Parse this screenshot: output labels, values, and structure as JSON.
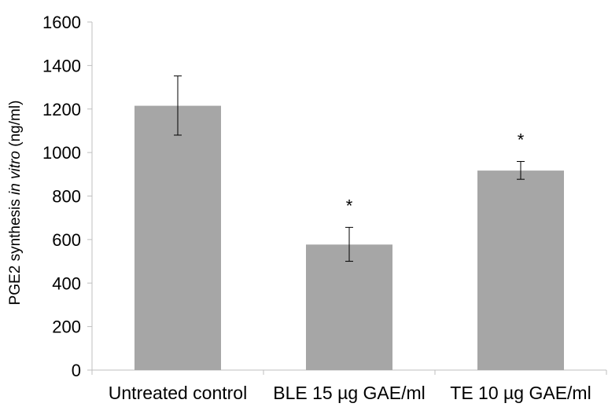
{
  "chart_data": {
    "type": "bar",
    "categories": [
      "Untreated control",
      "BLE 15 µg GAE/ml",
      "TE 10 µg GAE/ml"
    ],
    "values": [
      1215,
      577,
      917
    ],
    "error_low": [
      1080,
      500,
      877
    ],
    "error_high": [
      1352,
      656,
      959
    ],
    "significance": [
      "",
      "*",
      "*"
    ],
    "ylabel": "PGE2 synthesis in vitro (ng/ml)",
    "ylabel_parts": {
      "pre": "PGE2 synthesis ",
      "italic": "in vitro",
      "post": " (ng/ml)"
    },
    "ylim": [
      0,
      1600
    ],
    "yticks": [
      0,
      200,
      400,
      600,
      800,
      1000,
      1200,
      1400,
      1600
    ],
    "bar_color": "#a6a6a6",
    "grid": false
  }
}
